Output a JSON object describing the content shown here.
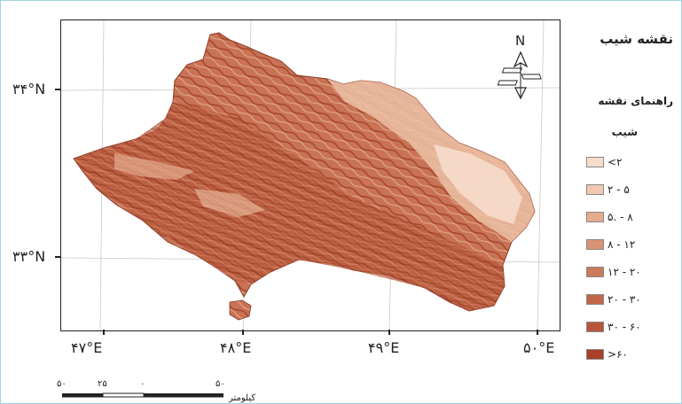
{
  "map": {
    "title": "نقشه شیب",
    "north_label": "N",
    "lat_labels": [
      "۳۴°N",
      "۳۳°N"
    ],
    "lon_labels": [
      "۴۷°E",
      "۴۸°E",
      "۴۹°E",
      "۵۰°E"
    ]
  },
  "legend": {
    "title": "راهنمای نقشه",
    "subtitle": "شیب",
    "items": [
      {
        "label": "<۲",
        "color": "#f6dccb"
      },
      {
        "label": "۲ - ۵",
        "color": "#f0c9b1"
      },
      {
        "label": "۵. - ۸",
        "color": "#e5ab8c"
      },
      {
        "label": "۸ - ۱۲",
        "color": "#d99373"
      },
      {
        "label": "۱۲ - ۲۰",
        "color": "#cc7a5b"
      },
      {
        "label": "۲۰ - ۳۰",
        "color": "#c26647"
      },
      {
        "label": "۳۰ - ۶۰",
        "color": "#b8543a"
      },
      {
        "label": ">۶۰",
        "color": "#a8402a"
      }
    ]
  },
  "scalebar": {
    "labels": [
      "۵۰",
      "۲۵",
      "۰",
      "۵۰"
    ],
    "unit": "کیلومتر"
  }
}
